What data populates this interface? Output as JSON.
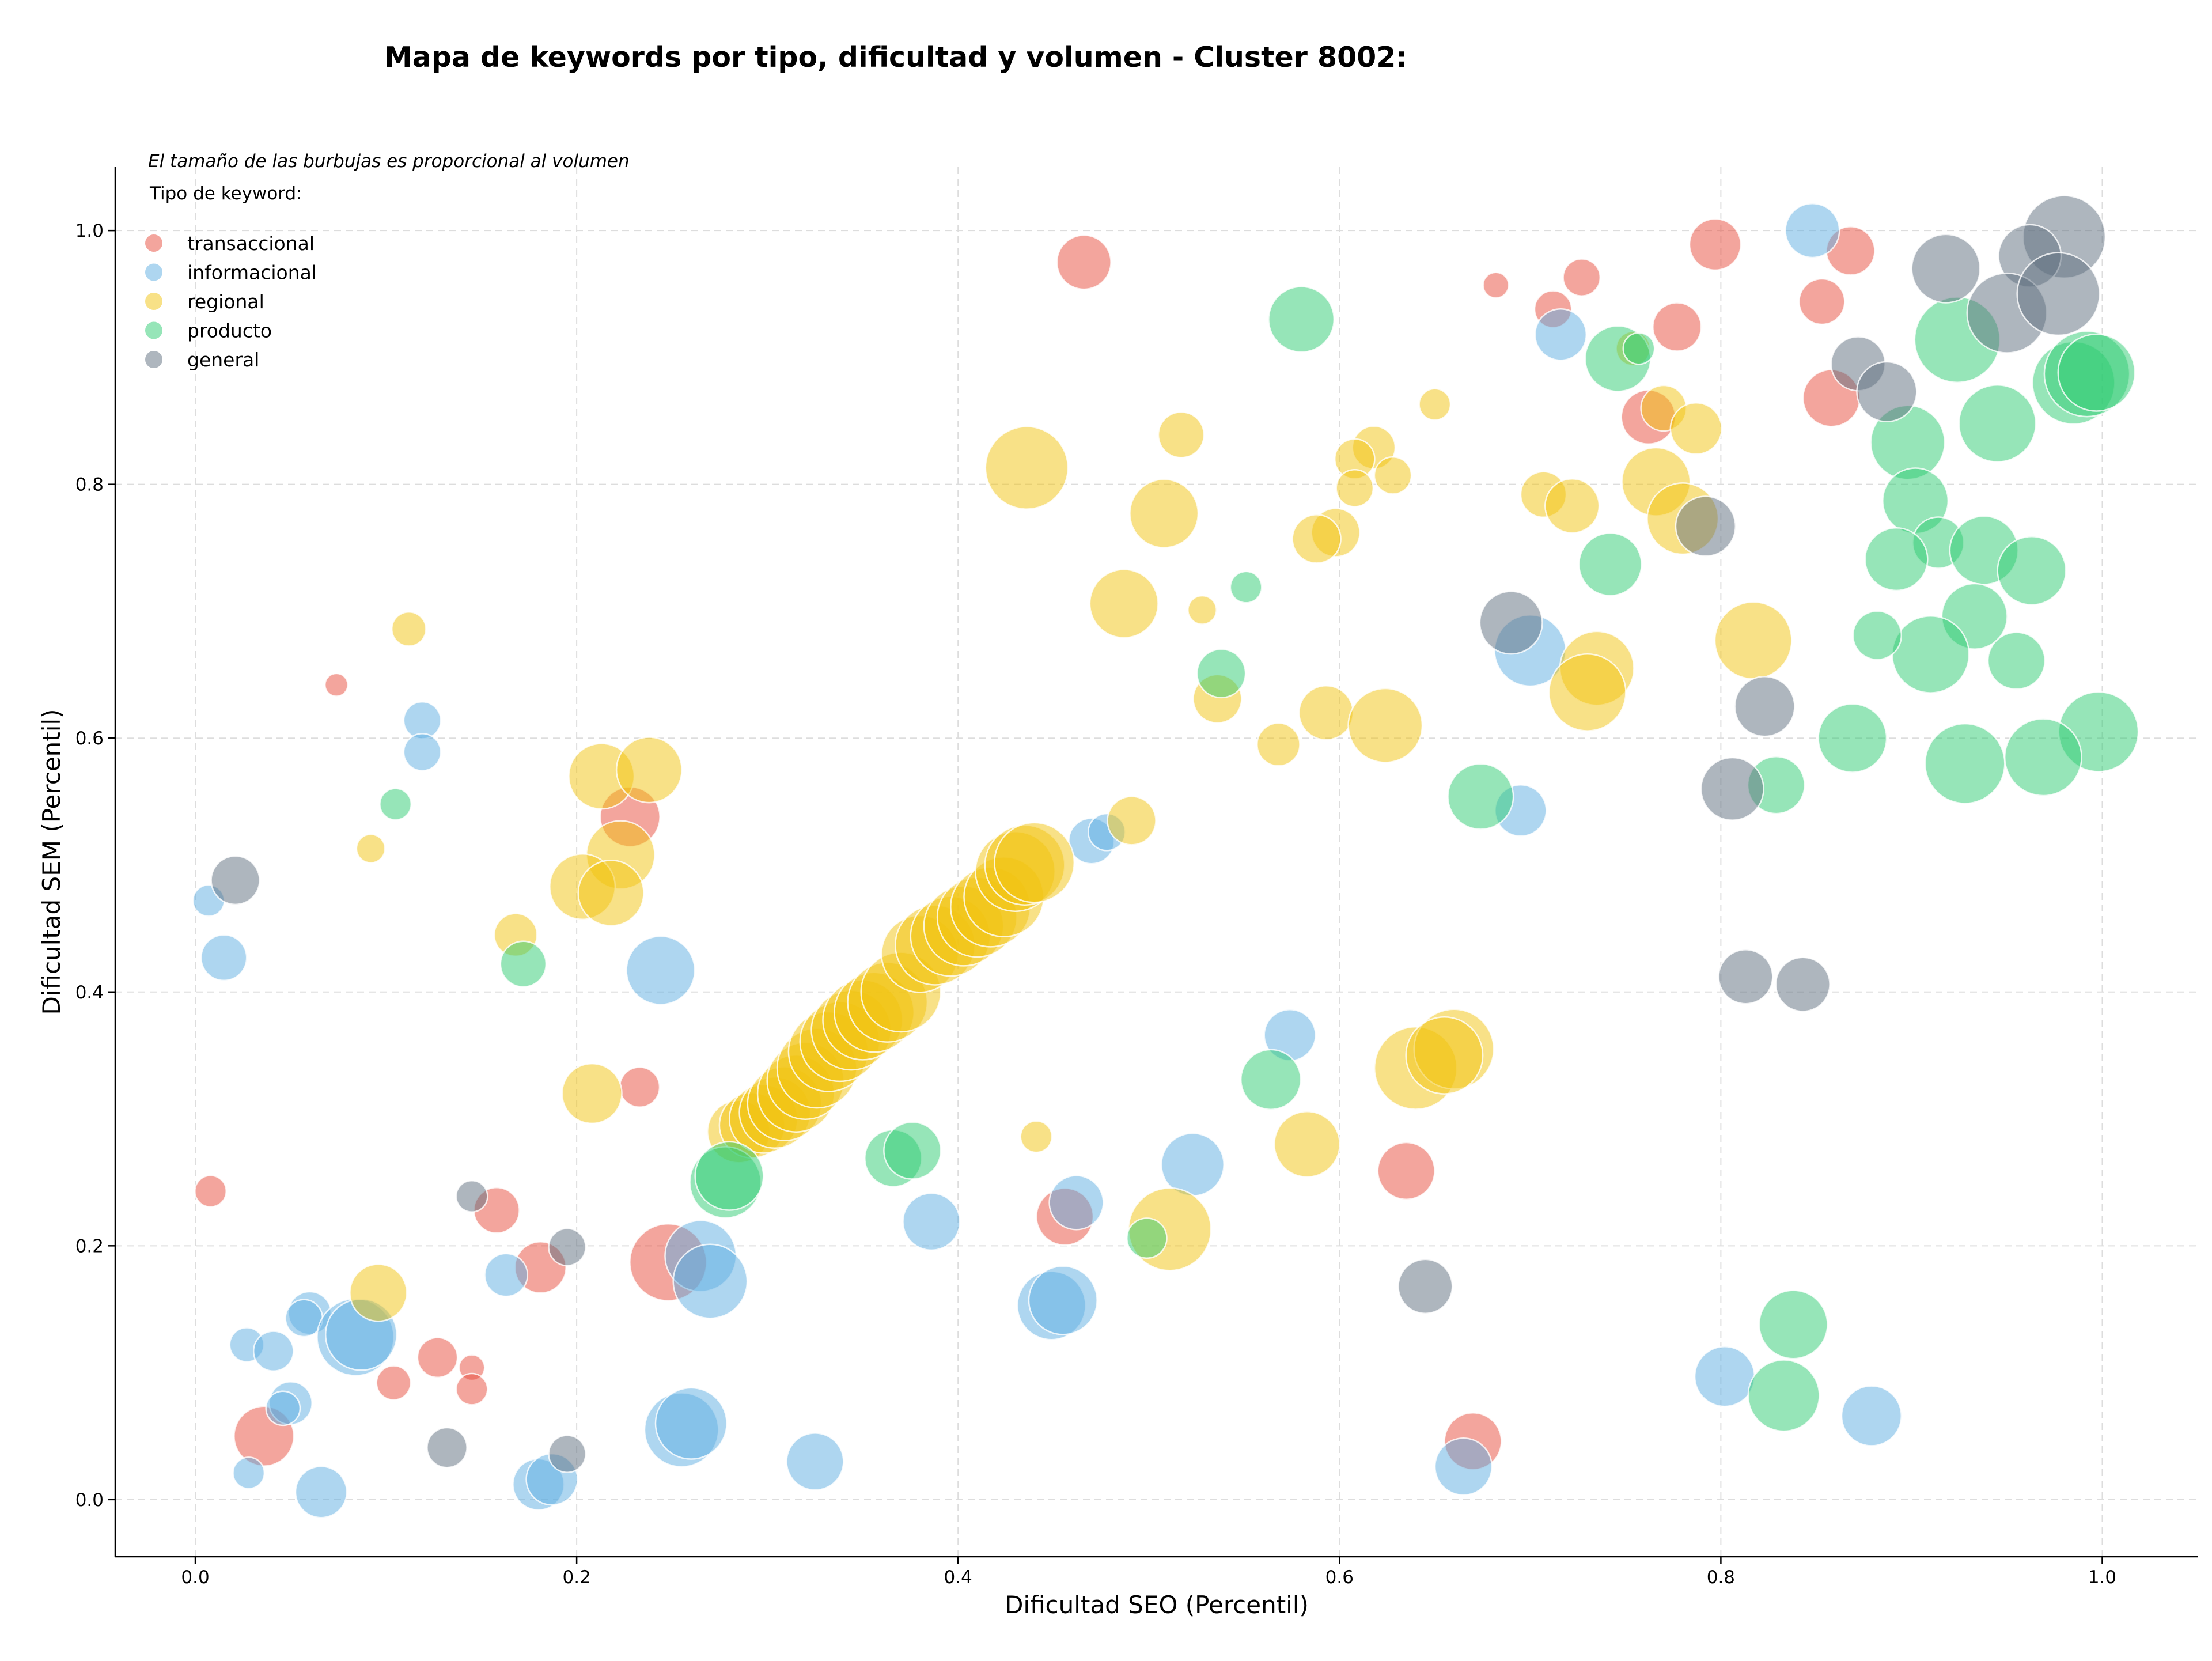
{
  "chart_data": {
    "type": "scatter",
    "title": "Mapa de keywords por tipo, dificultad y volumen - Cluster 8002:",
    "xlabel": "Dificultad SEO (Percentil)",
    "ylabel": "Dificultad SEM (Percentil)",
    "xlim": [
      -0.042,
      1.05
    ],
    "ylim": [
      -0.045,
      1.05
    ],
    "xticks": [
      "0.0",
      "0.2",
      "0.4",
      "0.6",
      "0.8",
      "1.0"
    ],
    "yticks": [
      "0.0",
      "0.2",
      "0.4",
      "0.6",
      "0.8",
      "1.0"
    ],
    "grid": true,
    "legend": {
      "placement": "top-left",
      "note": "El tamaño de las burbujas es proporcional al volumen",
      "title": "Tipo de keyword:"
    },
    "series": [
      {
        "name": "transaccional",
        "color": "#e74c3c",
        "points": [
          [
            0.466,
            0.975,
            19
          ],
          [
            0.682,
            0.957,
            9
          ],
          [
            0.727,
            0.963,
            13
          ],
          [
            0.712,
            0.938,
            13
          ],
          [
            0.797,
            0.989,
            18
          ],
          [
            0.868,
            0.984,
            17
          ],
          [
            0.853,
            0.944,
            16
          ],
          [
            0.777,
            0.924,
            17
          ],
          [
            0.762,
            0.853,
            19
          ],
          [
            0.858,
            0.868,
            20
          ],
          [
            0.074,
            0.642,
            8
          ],
          [
            0.228,
            0.538,
            21
          ],
          [
            0.233,
            0.325,
            14
          ],
          [
            0.008,
            0.243,
            11
          ],
          [
            0.158,
            0.228,
            16
          ],
          [
            0.181,
            0.183,
            18
          ],
          [
            0.248,
            0.187,
            27
          ],
          [
            0.456,
            0.223,
            20
          ],
          [
            0.635,
            0.259,
            20
          ],
          [
            0.127,
            0.112,
            14
          ],
          [
            0.104,
            0.092,
            12
          ],
          [
            0.145,
            0.104,
            9
          ],
          [
            0.145,
            0.087,
            11
          ],
          [
            0.036,
            0.05,
            21
          ],
          [
            0.67,
            0.046,
            20
          ]
        ]
      },
      {
        "name": "informacional",
        "color": "#5dade2",
        "points": [
          [
            0.848,
            1.0,
            19
          ],
          [
            0.716,
            0.918,
            18
          ],
          [
            0.119,
            0.614,
            13
          ],
          [
            0.119,
            0.589,
            13
          ],
          [
            0.007,
            0.472,
            11
          ],
          [
            0.015,
            0.427,
            16
          ],
          [
            0.244,
            0.417,
            24
          ],
          [
            0.47,
            0.519,
            16
          ],
          [
            0.478,
            0.526,
            13
          ],
          [
            0.7,
            0.669,
            25
          ],
          [
            0.695,
            0.543,
            18
          ],
          [
            0.574,
            0.366,
            18
          ],
          [
            0.523,
            0.264,
            22
          ],
          [
            0.462,
            0.234,
            19
          ],
          [
            0.386,
            0.219,
            20
          ],
          [
            0.265,
            0.192,
            25
          ],
          [
            0.27,
            0.172,
            26
          ],
          [
            0.163,
            0.177,
            15
          ],
          [
            0.449,
            0.153,
            24
          ],
          [
            0.455,
            0.157,
            24
          ],
          [
            0.06,
            0.147,
            15
          ],
          [
            0.057,
            0.143,
            13
          ],
          [
            0.027,
            0.122,
            12
          ],
          [
            0.041,
            0.117,
            14
          ],
          [
            0.084,
            0.128,
            27
          ],
          [
            0.087,
            0.13,
            25
          ],
          [
            0.05,
            0.076,
            15
          ],
          [
            0.046,
            0.072,
            12
          ],
          [
            0.255,
            0.055,
            26
          ],
          [
            0.26,
            0.06,
            25
          ],
          [
            0.325,
            0.03,
            20
          ],
          [
            0.18,
            0.012,
            18
          ],
          [
            0.187,
            0.016,
            18
          ],
          [
            0.028,
            0.021,
            11
          ],
          [
            0.066,
            0.006,
            18
          ],
          [
            0.665,
            0.026,
            20
          ],
          [
            0.802,
            0.097,
            21
          ],
          [
            0.879,
            0.066,
            21
          ]
        ]
      },
      {
        "name": "regional",
        "color": "#f1c40f",
        "points": [
          [
            0.436,
            0.813,
            29
          ],
          [
            0.517,
            0.839,
            16
          ],
          [
            0.508,
            0.777,
            24
          ],
          [
            0.487,
            0.706,
            24
          ],
          [
            0.528,
            0.701,
            10
          ],
          [
            0.65,
            0.863,
            11
          ],
          [
            0.618,
            0.829,
            15
          ],
          [
            0.608,
            0.82,
            14
          ],
          [
            0.628,
            0.807,
            13
          ],
          [
            0.608,
            0.797,
            13
          ],
          [
            0.598,
            0.762,
            17
          ],
          [
            0.588,
            0.757,
            17
          ],
          [
            0.536,
            0.631,
            17
          ],
          [
            0.593,
            0.62,
            19
          ],
          [
            0.624,
            0.61,
            26
          ],
          [
            0.568,
            0.595,
            15
          ],
          [
            0.754,
            0.907,
            12
          ],
          [
            0.77,
            0.86,
            16
          ],
          [
            0.787,
            0.844,
            18
          ],
          [
            0.766,
            0.802,
            24
          ],
          [
            0.707,
            0.792,
            16
          ],
          [
            0.722,
            0.783,
            19
          ],
          [
            0.78,
            0.773,
            25
          ],
          [
            0.817,
            0.677,
            27
          ],
          [
            0.735,
            0.655,
            26
          ],
          [
            0.73,
            0.636,
            27
          ],
          [
            0.112,
            0.686,
            12
          ],
          [
            0.213,
            0.57,
            23
          ],
          [
            0.238,
            0.575,
            23
          ],
          [
            0.223,
            0.508,
            24
          ],
          [
            0.203,
            0.483,
            23
          ],
          [
            0.218,
            0.478,
            23
          ],
          [
            0.092,
            0.513,
            10
          ],
          [
            0.168,
            0.445,
            15
          ],
          [
            0.208,
            0.32,
            21
          ],
          [
            0.096,
            0.163,
            20
          ],
          [
            0.491,
            0.535,
            17
          ],
          [
            0.441,
            0.286,
            11
          ],
          [
            0.583,
            0.28,
            23
          ],
          [
            0.511,
            0.213,
            29
          ],
          [
            0.64,
            0.34,
            29
          ],
          [
            0.66,
            0.355,
            28
          ],
          [
            0.655,
            0.35,
            27
          ],
          [
            0.285,
            0.29,
            22
          ],
          [
            0.292,
            0.295,
            23
          ],
          [
            0.298,
            0.3,
            24
          ],
          [
            0.304,
            0.305,
            25
          ],
          [
            0.309,
            0.312,
            26
          ],
          [
            0.315,
            0.32,
            27
          ],
          [
            0.32,
            0.33,
            27
          ],
          [
            0.326,
            0.34,
            28
          ],
          [
            0.332,
            0.353,
            28
          ],
          [
            0.338,
            0.361,
            28
          ],
          [
            0.344,
            0.37,
            28
          ],
          [
            0.35,
            0.378,
            28
          ],
          [
            0.356,
            0.384,
            28
          ],
          [
            0.363,
            0.392,
            28
          ],
          [
            0.37,
            0.4,
            28
          ],
          [
            0.38,
            0.43,
            27
          ],
          [
            0.388,
            0.437,
            28
          ],
          [
            0.396,
            0.444,
            28
          ],
          [
            0.403,
            0.452,
            28
          ],
          [
            0.41,
            0.459,
            28
          ],
          [
            0.417,
            0.467,
            28
          ],
          [
            0.424,
            0.475,
            28
          ],
          [
            0.43,
            0.495,
            28
          ],
          [
            0.435,
            0.5,
            28
          ],
          [
            0.44,
            0.502,
            28
          ]
        ]
      },
      {
        "name": "producto",
        "color": "#2ecc71",
        "points": [
          [
            0.58,
            0.93,
            23
          ],
          [
            0.551,
            0.719,
            11
          ],
          [
            0.538,
            0.651,
            17
          ],
          [
            0.746,
            0.899,
            23
          ],
          [
            0.757,
            0.907,
            11
          ],
          [
            0.742,
            0.737,
            22
          ],
          [
            0.924,
            0.914,
            30
          ],
          [
            0.945,
            0.848,
            27
          ],
          [
            0.898,
            0.833,
            26
          ],
          [
            0.985,
            0.88,
            29
          ],
          [
            0.992,
            0.887,
            30
          ],
          [
            0.997,
            0.888,
            27
          ],
          [
            0.902,
            0.787,
            23
          ],
          [
            0.914,
            0.754,
            18
          ],
          [
            0.938,
            0.748,
            24
          ],
          [
            0.963,
            0.732,
            24
          ],
          [
            0.892,
            0.741,
            22
          ],
          [
            0.933,
            0.696,
            23
          ],
          [
            0.91,
            0.666,
            27
          ],
          [
            0.955,
            0.661,
            20
          ],
          [
            0.882,
            0.681,
            17
          ],
          [
            0.998,
            0.605,
            28
          ],
          [
            0.869,
            0.6,
            24
          ],
          [
            0.928,
            0.58,
            28
          ],
          [
            0.969,
            0.585,
            27
          ],
          [
            0.829,
            0.563,
            20
          ],
          [
            0.674,
            0.554,
            23
          ],
          [
            0.105,
            0.548,
            11
          ],
          [
            0.172,
            0.422,
            16
          ],
          [
            0.564,
            0.331,
            21
          ],
          [
            0.366,
            0.269,
            20
          ],
          [
            0.376,
            0.275,
            20
          ],
          [
            0.278,
            0.25,
            25
          ],
          [
            0.28,
            0.255,
            24
          ],
          [
            0.499,
            0.206,
            14
          ],
          [
            0.838,
            0.138,
            24
          ],
          [
            0.833,
            0.082,
            25
          ]
        ]
      },
      {
        "name": "general",
        "color": "#5d6d7e",
        "points": [
          [
            0.98,
            0.995,
            29
          ],
          [
            0.918,
            0.97,
            24
          ],
          [
            0.962,
            0.98,
            22
          ],
          [
            0.95,
            0.935,
            28
          ],
          [
            0.977,
            0.95,
            29
          ],
          [
            0.872,
            0.895,
            19
          ],
          [
            0.887,
            0.873,
            21
          ],
          [
            0.792,
            0.767,
            21
          ],
          [
            0.69,
            0.691,
            22
          ],
          [
            0.823,
            0.625,
            21
          ],
          [
            0.806,
            0.56,
            22
          ],
          [
            0.813,
            0.412,
            19
          ],
          [
            0.843,
            0.406,
            19
          ],
          [
            0.021,
            0.488,
            17
          ],
          [
            0.145,
            0.239,
            11
          ],
          [
            0.195,
            0.199,
            13
          ],
          [
            0.645,
            0.168,
            19
          ],
          [
            0.132,
            0.041,
            14
          ],
          [
            0.195,
            0.036,
            13
          ]
        ]
      }
    ]
  }
}
